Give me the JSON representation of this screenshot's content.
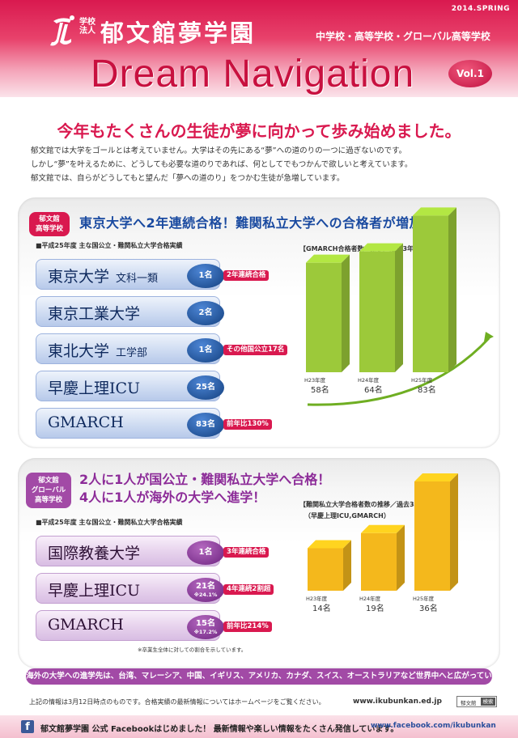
{
  "header": {
    "season": "2014.SPRING",
    "corp": "学校法人",
    "school_name": "郁文館夢学園",
    "school_sub": "中学校・高等学校・グローバル高等学校",
    "title": "Dream Navigation",
    "vol": "Vol.1",
    "brand_color": "#d9194f"
  },
  "intro": {
    "headline": "今年もたくさんの生徒が夢に向かって歩み始めました。",
    "lines": [
      "郁文館では大学をゴールとは考えていません。大学はその先にある“夢”への道のりの一つに過ぎないのです。",
      "しかし“夢”を叶えるために、どうしても必要な道のりであれば、何としてでもつかんで欲しいと考えています。",
      "郁文館では、自らがどうしてもと望んだ「夢への道のり」をつかむ生徒が急増しています。"
    ]
  },
  "section1": {
    "tag": "郁文館高等学校",
    "tag_lines": [
      "郁文館",
      "高等学校"
    ],
    "headline": "東京大学へ2年連続合格！難関私立大学への合格者が増加！",
    "sublabel": "■平成25年度 主な国公立・難関私立大学合格実績",
    "rows": [
      {
        "name": "東京大学",
        "dept": "文科一類",
        "count": "1名",
        "note": "2年連続合格"
      },
      {
        "name": "東京工業大学",
        "dept": "",
        "count": "2名",
        "note": ""
      },
      {
        "name": "東北大学",
        "dept": "工学部",
        "count": "1名",
        "note": "その他国公立17名"
      },
      {
        "name": "早慶上理ICU",
        "dept": "",
        "count": "25名",
        "note": ""
      },
      {
        "name": "GMARCH",
        "dept": "",
        "count": "83名",
        "note": "前年比130%"
      }
    ]
  },
  "section2": {
    "tag_lines": [
      "郁文館",
      "グローバル",
      "高等学校"
    ],
    "headline_lines": [
      "2人に1人が国公立・難関私立大学へ合格！",
      "4人に1人が海外の大学へ進学！"
    ],
    "sublabel": "■平成25年度 主な国公立・難関私立大学合格実績",
    "rows": [
      {
        "name": "国際教養大学",
        "count": "1名",
        "pct": "",
        "note": "3年連続合格"
      },
      {
        "name": "早慶上理ICU",
        "count": "21名",
        "pct": "※24.1%",
        "note": "4年連続2割超"
      },
      {
        "name": "GMARCH",
        "count": "15名",
        "pct": "※17.2%",
        "note": "前年比214%"
      }
    ],
    "footnote": "※卒業生全体に対しての割合を示しています。",
    "bottom_bar": "海外の大学への進学先は、台湾、マレーシア、中国、イギリス、アメリカ、カナダ、スイス、オーストラリアなど世界中へと広がっています。"
  },
  "chart_data": [
    {
      "type": "bar",
      "title": "【GMARCH合格者数の推移／過去3年間】",
      "categories": [
        "H23年度",
        "H24年度",
        "H25年度"
      ],
      "values": [
        58,
        64,
        83
      ],
      "labels": [
        "58名",
        "64名",
        "83名"
      ],
      "color": "#9cc93a",
      "ylim": [
        0,
        90
      ]
    },
    {
      "type": "bar",
      "title": "【難関私立大学合格者数の推移／過去3年間】",
      "subtitle": "（早慶上理ICU,GMARCH）",
      "categories": [
        "H23年度",
        "H24年度",
        "H25年度"
      ],
      "values": [
        14,
        19,
        36
      ],
      "labels": [
        "14名",
        "19名",
        "36名"
      ],
      "color": "#f4b81c",
      "ylim": [
        0,
        40
      ]
    }
  ],
  "footer": {
    "info_note": "上記の情報は3月12日時点のものです。合格実績の最新情報についてはホームページをご覧ください。",
    "url": "www.ikubunkan.ed.jp",
    "search_text": "郁文館",
    "search_button": "検索",
    "fb_letter": "f",
    "fb_text": "郁文館夢学園 公式 Facebookはじめました！ 最新情報や楽しい情報をたくさん発信しています。",
    "fb_url": "www.facebook.com/ikubunkan"
  }
}
